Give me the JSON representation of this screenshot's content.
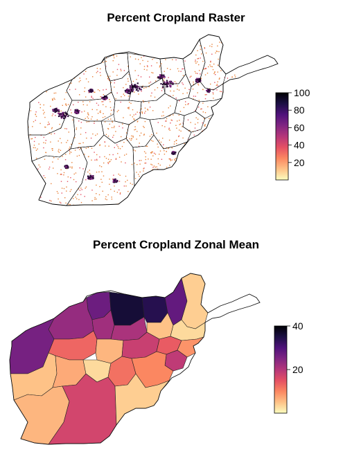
{
  "colors": {
    "background": "#ffffff",
    "border": "#000000",
    "magma": [
      "#fcfdbf",
      "#fec287",
      "#fb8761",
      "#e55064",
      "#b5367a",
      "#802582",
      "#4f127b",
      "#1c1044",
      "#000004"
    ],
    "raster_cell": "#e8823a",
    "raster_dense": "#2b0f3b"
  },
  "chart_data": [
    {
      "type": "heatmap",
      "title": "Percent Cropland Raster",
      "xlabel": "",
      "ylabel": "",
      "legend": {
        "placement": "right",
        "range": [
          0,
          100
        ],
        "ticks": [
          20,
          40,
          60,
          80,
          100
        ],
        "palette": "magma-reversed"
      }
    },
    {
      "type": "heatmap",
      "title": "Percent Cropland Zonal Mean",
      "xlabel": "",
      "ylabel": "",
      "legend": {
        "placement": "right",
        "range": [
          0,
          40
        ],
        "ticks": [
          20,
          40
        ],
        "palette": "magma-reversed"
      },
      "zones": [
        {
          "id": 1,
          "value": 27
        },
        {
          "id": 2,
          "value": 36
        },
        {
          "id": 3,
          "value": 34
        },
        {
          "id": 4,
          "value": 28
        },
        {
          "id": 5,
          "value": 4
        },
        {
          "id": 6,
          "value": 23
        },
        {
          "id": 7,
          "value": 26
        },
        {
          "id": 8,
          "value": 22
        },
        {
          "id": 9,
          "value": 21
        },
        {
          "id": 10,
          "value": 5
        },
        {
          "id": 11,
          "value": 3
        },
        {
          "id": 12,
          "value": 13
        },
        {
          "id": 13,
          "value": 6
        },
        {
          "id": 14,
          "value": 18
        },
        {
          "id": 15,
          "value": 14
        },
        {
          "id": 16,
          "value": 9
        },
        {
          "id": 17,
          "value": 19
        },
        {
          "id": 18,
          "value": 5
        },
        {
          "id": 19,
          "value": 7
        },
        {
          "id": 20,
          "value": 3
        },
        {
          "id": 21,
          "value": 12
        },
        {
          "id": 22,
          "value": 10
        },
        {
          "id": 23,
          "value": 6
        },
        {
          "id": 24,
          "value": 17
        },
        {
          "id": 25,
          "value": 4
        }
      ]
    }
  ]
}
